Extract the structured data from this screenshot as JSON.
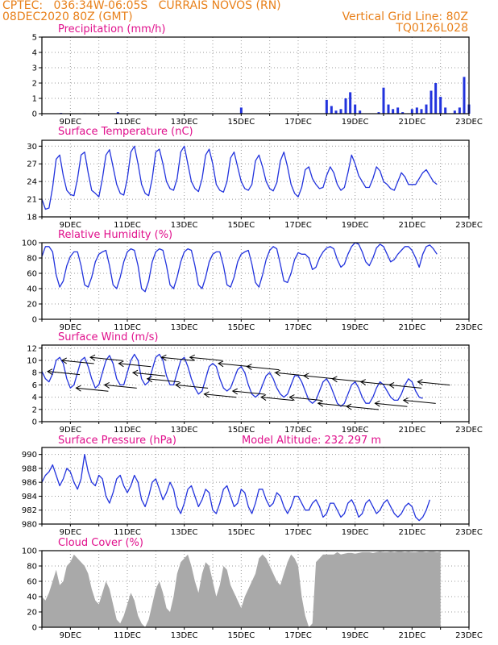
{
  "header": {
    "line1_left": "CPTEC:   036:34W-06:05S   CURRAIS NOVOS (RN)",
    "line2_left": "08DEC2020 80Z (GMT)",
    "line2_right": "Vertical Grid Line: 80Z",
    "line3_right": "TQ0126L028"
  },
  "colors": {
    "header": "#e8801a",
    "title": "#e0108c",
    "line": "#2233dd",
    "cloud": "#a9a9a9",
    "grid": "#999999"
  },
  "chart_data": [
    {
      "id": "precip",
      "type": "bar",
      "title": "Precipitation (mm/h)",
      "ylim": [
        0,
        5
      ],
      "yticks": [
        "0",
        "1",
        "2",
        "3",
        "4",
        "5"
      ],
      "xlabels": [
        "9DEC",
        "11DEC",
        "13DEC",
        "15DEC",
        "17DEC",
        "19DEC",
        "21DEC",
        "23DEC"
      ],
      "days": [
        8.33,
        8.5,
        8.67,
        8.83,
        9,
        9.17,
        9.33,
        9.5,
        9.67,
        9.83,
        10,
        10.17,
        10.33,
        10.5,
        10.67,
        10.83,
        11,
        11.17,
        11.33,
        11.5,
        11.67,
        11.83,
        12,
        12.17,
        12.33,
        12.5,
        12.67,
        12.83,
        13,
        13.17,
        13.33,
        13.5,
        13.67,
        13.83,
        14,
        14.17,
        14.33,
        14.5,
        14.67,
        14.83,
        15,
        15.17,
        15.33,
        15.5,
        15.67,
        15.83,
        16,
        16.17,
        16.33,
        16.5,
        16.67,
        16.83,
        17,
        17.17,
        17.33,
        17.5,
        17.67,
        17.83,
        18,
        18.17,
        18.33,
        18.5,
        18.67,
        18.83,
        19,
        19.17,
        19.33,
        19.5,
        19.67,
        19.83,
        20,
        20.17,
        20.33,
        20.5,
        20.67,
        20.83,
        21,
        21.17,
        21.33,
        21.5,
        21.67,
        21.83,
        22,
        22.17,
        22.33,
        22.5,
        22.67,
        22.83,
        23
      ],
      "values": [
        0,
        0,
        0.05,
        0,
        0,
        0,
        0,
        0.03,
        0,
        0,
        0,
        0,
        0,
        0,
        0.1,
        0,
        0,
        0,
        0,
        0,
        0,
        0,
        0,
        0,
        0,
        0,
        0,
        0,
        0,
        0,
        0,
        0,
        0,
        0,
        0,
        0,
        0,
        0,
        0,
        0,
        0.4,
        0,
        0,
        0,
        0,
        0,
        0,
        0,
        0,
        0,
        0,
        0,
        0,
        0,
        0,
        0,
        0,
        0,
        0.9,
        0.5,
        0.2,
        0.3,
        1.0,
        1.4,
        0.6,
        0.2,
        0,
        0,
        0,
        0.1,
        1.7,
        0.6,
        0.3,
        0.4,
        0.1,
        0,
        0.3,
        0.4,
        0.3,
        0.6,
        1.5,
        2.0,
        1.1,
        0.4,
        0,
        0.2,
        0.4,
        2.4,
        0.6
      ]
    },
    {
      "id": "temperature",
      "type": "line",
      "title": "Surface Temperature (nC)",
      "ylim": [
        18,
        31
      ],
      "yticks": [
        "18",
        "21",
        "24",
        "27",
        "30"
      ],
      "xlabels": [
        "9DEC",
        "11DEC",
        "13DEC",
        "15DEC",
        "17DEC",
        "19DEC",
        "21DEC",
        "23DEC"
      ],
      "day_start": 8.0,
      "step_hours": 3,
      "values": [
        21,
        19.3,
        19.5,
        23,
        27.8,
        28.5,
        25,
        22.5,
        21.8,
        21.6,
        24.5,
        28.5,
        29,
        25.5,
        22.5,
        22,
        21.4,
        24.5,
        28.5,
        29.4,
        26.5,
        23.5,
        22,
        21.7,
        24.5,
        29,
        30,
        27,
        23.5,
        22,
        21.6,
        24.5,
        29,
        29.5,
        27,
        24,
        22.8,
        22.5,
        24.5,
        29,
        30,
        27,
        24,
        22.8,
        22.3,
        24.5,
        28.5,
        29.5,
        27,
        23.5,
        22.5,
        22.2,
        24,
        28,
        29,
        26.5,
        24,
        22.8,
        22.5,
        23.5,
        27.5,
        28.5,
        26.5,
        24,
        22.8,
        22.4,
        23.8,
        27.5,
        29,
        26.5,
        23.5,
        22,
        21.4,
        23,
        26,
        26.5,
        24.5,
        23.5,
        22.8,
        23,
        25,
        26.5,
        25.5,
        23.5,
        22.5,
        23,
        25.5,
        28.5,
        27,
        25,
        24,
        23,
        23,
        24.5,
        26.5,
        25.8,
        24,
        23.5,
        22.8,
        22.5,
        24,
        25.5,
        24.8,
        23.5,
        23.5,
        23.5,
        24.5,
        25.5,
        26,
        25,
        24,
        23.5
      ]
    },
    {
      "id": "humidity",
      "type": "line",
      "title": "Relative Humidity (%)",
      "ylim": [
        0,
        100
      ],
      "yticks": [
        "0",
        "20",
        "40",
        "60",
        "80",
        "100"
      ],
      "xlabels": [
        "9DEC",
        "11DEC",
        "13DEC",
        "15DEC",
        "17DEC",
        "19DEC",
        "21DEC",
        "23DEC"
      ],
      "day_start": 8.0,
      "step_hours": 3,
      "values": [
        82,
        95,
        95,
        88,
        58,
        42,
        50,
        70,
        82,
        88,
        88,
        70,
        45,
        42,
        55,
        75,
        85,
        88,
        90,
        70,
        45,
        40,
        55,
        75,
        88,
        92,
        90,
        70,
        40,
        36,
        50,
        75,
        88,
        92,
        90,
        70,
        45,
        40,
        55,
        75,
        88,
        92,
        90,
        70,
        45,
        40,
        55,
        75,
        85,
        88,
        88,
        70,
        45,
        42,
        55,
        75,
        85,
        88,
        90,
        72,
        48,
        42,
        58,
        78,
        90,
        95,
        92,
        72,
        50,
        48,
        60,
        78,
        87,
        85,
        85,
        80,
        65,
        68,
        80,
        88,
        93,
        95,
        92,
        78,
        68,
        72,
        85,
        95,
        100,
        98,
        88,
        75,
        70,
        80,
        93,
        98,
        95,
        85,
        75,
        78,
        85,
        90,
        95,
        95,
        90,
        80,
        68,
        85,
        95,
        97,
        92,
        85
      ]
    },
    {
      "id": "wind",
      "type": "line",
      "title": "Surface Wind (m/s)",
      "ylim": [
        0,
        12.5
      ],
      "yticks": [
        "0",
        "2",
        "4",
        "6",
        "8",
        "10",
        "12"
      ],
      "xlabels": [
        "9DEC",
        "11DEC",
        "13DEC",
        "15DEC",
        "17DEC",
        "19DEC",
        "21DEC",
        "23DEC"
      ],
      "day_start": 8.0,
      "step_hours": 3,
      "values": [
        8.2,
        7,
        6.5,
        7.8,
        10,
        10.5,
        9.5,
        7,
        5.5,
        6,
        8,
        10,
        10.5,
        9,
        7,
        5.5,
        6,
        8,
        10,
        10.8,
        9.5,
        7,
        6,
        6,
        8,
        10,
        11,
        10,
        7,
        6,
        6.5,
        8.5,
        10.5,
        11,
        10,
        7.5,
        6,
        6,
        8,
        10,
        10.5,
        9,
        7,
        5.5,
        4.5,
        5,
        7,
        9,
        9.5,
        9,
        7,
        5.5,
        5,
        5.5,
        7,
        8.5,
        9,
        8,
        6,
        4.5,
        4,
        4.5,
        6,
        7.5,
        8,
        7,
        5.5,
        4.5,
        4,
        4.5,
        6,
        7.5,
        7.5,
        6.5,
        5,
        3.5,
        3,
        3.5,
        5,
        6.5,
        7,
        6,
        4.5,
        3,
        2.5,
        3,
        4.5,
        6,
        6.5,
        5.5,
        4,
        3,
        3,
        4,
        5.5,
        6.5,
        6,
        5,
        4,
        3.5,
        3.5,
        4.5,
        6,
        7,
        6.5,
        5,
        4,
        3.8
      ]
    },
    {
      "id": "pressure",
      "type": "line",
      "title": "Surface Pressure (hPa)",
      "extra_label": "Model Altitude: 232.297 m",
      "ylim": [
        980,
        991
      ],
      "yticks": [
        "980",
        "982",
        "984",
        "986",
        "988",
        "990"
      ],
      "xlabels": [
        "9DEC",
        "11DEC",
        "13DEC",
        "15DEC",
        "17DEC",
        "19DEC",
        "21DEC",
        "23DEC"
      ],
      "day_start": 8.0,
      "step_hours": 3,
      "values": [
        986,
        987,
        987.5,
        988.5,
        987,
        985.5,
        986.5,
        988,
        987.5,
        986,
        985,
        986.5,
        990,
        987.5,
        986,
        985.5,
        987,
        986.5,
        984,
        983,
        984.5,
        986.5,
        987,
        985.5,
        984.5,
        985.5,
        987,
        986,
        983.5,
        982.5,
        984,
        986,
        986.5,
        985,
        983.5,
        984.5,
        986,
        985,
        982.5,
        981.5,
        983,
        985,
        985.5,
        984,
        982.5,
        983.5,
        985,
        984.5,
        982,
        981.5,
        983,
        985,
        985.5,
        984,
        982.5,
        983,
        985,
        984.5,
        982.5,
        981.5,
        983,
        985,
        985,
        983.5,
        982.5,
        983,
        984.5,
        984,
        982.5,
        981.5,
        982.5,
        984,
        984,
        983,
        982,
        982,
        983,
        983.5,
        982.5,
        981,
        981.5,
        983,
        983,
        982,
        981,
        981.5,
        983,
        983.5,
        982.5,
        981,
        981.5,
        983,
        983.5,
        982.5,
        981.5,
        982,
        983,
        983.5,
        982.5,
        981.5,
        981,
        981.5,
        982.5,
        983,
        982.5,
        981,
        980.5,
        981,
        982,
        983.5
      ]
    },
    {
      "id": "cloud",
      "type": "area",
      "title": "Cloud Cover (%)",
      "ylim": [
        0,
        100
      ],
      "yticks": [
        "0",
        "20",
        "40",
        "60",
        "80",
        "100"
      ],
      "xlabels": [
        "9DEC",
        "11DEC",
        "13DEC",
        "15DEC",
        "17DEC",
        "19DEC",
        "21DEC",
        "23DEC"
      ],
      "day_start": 8.0,
      "step_hours": 3,
      "values": [
        40,
        35,
        45,
        60,
        75,
        55,
        60,
        80,
        85,
        95,
        90,
        85,
        80,
        70,
        50,
        35,
        30,
        45,
        60,
        50,
        30,
        10,
        5,
        15,
        30,
        45,
        35,
        15,
        5,
        0,
        10,
        30,
        50,
        60,
        45,
        25,
        20,
        40,
        70,
        85,
        90,
        95,
        80,
        60,
        45,
        70,
        85,
        80,
        60,
        40,
        55,
        80,
        75,
        55,
        45,
        35,
        25,
        40,
        50,
        60,
        70,
        90,
        95,
        90,
        80,
        70,
        60,
        55,
        70,
        85,
        95,
        90,
        80,
        40,
        15,
        0,
        5,
        85,
        90,
        95,
        95,
        95,
        95,
        98,
        95,
        96,
        97,
        97,
        96,
        97,
        98,
        98,
        98,
        97,
        98,
        99,
        98,
        98,
        99,
        98,
        99,
        99,
        98,
        99,
        98,
        98,
        99,
        99,
        98,
        99,
        99,
        98,
        99
      ]
    }
  ]
}
